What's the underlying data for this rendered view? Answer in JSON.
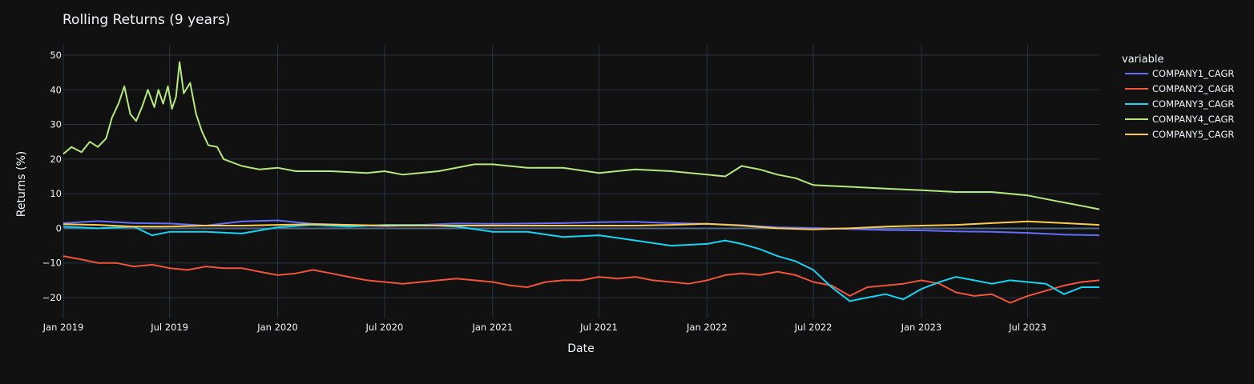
{
  "chart_data": {
    "type": "line",
    "title": "Rolling Returns (9 years)",
    "xlabel": "Date",
    "ylabel": "Returns (%)",
    "x_range": [
      "2019-01-01",
      "2023-10-31"
    ],
    "ylim": [
      -26,
      53
    ],
    "y_ticks": [
      -20,
      -10,
      0,
      10,
      20,
      30,
      40,
      50
    ],
    "y_tick_labels": [
      "−20",
      "−10",
      "0",
      "10",
      "20",
      "30",
      "40",
      "50"
    ],
    "x_ticks": [
      "2019-01-01",
      "2019-07-01",
      "2020-01-01",
      "2020-07-01",
      "2021-01-01",
      "2021-07-01",
      "2022-01-01",
      "2022-07-01",
      "2023-01-01",
      "2023-07-01"
    ],
    "x_tick_labels": [
      "Jan 2019",
      "Jul 2019",
      "Jan 2020",
      "Jul 2020",
      "Jan 2021",
      "Jul 2021",
      "Jan 2022",
      "Jul 2022",
      "Jan 2023",
      "Jul 2023"
    ],
    "legend_title": "variable",
    "legend_position": "right",
    "grid": true,
    "series": [
      {
        "name": "COMPANY1_CAGR",
        "color": "#636efa",
        "points": [
          [
            "2019-01-01",
            1.5
          ],
          [
            "2019-03-01",
            2.1
          ],
          [
            "2019-05-01",
            1.5
          ],
          [
            "2019-07-01",
            1.4
          ],
          [
            "2019-09-01",
            0.8
          ],
          [
            "2019-11-01",
            2.0
          ],
          [
            "2020-01-01",
            2.3
          ],
          [
            "2020-03-01",
            1.3
          ],
          [
            "2020-05-01",
            1.0
          ],
          [
            "2020-07-01",
            0.6
          ],
          [
            "2020-09-01",
            1.0
          ],
          [
            "2020-11-01",
            1.4
          ],
          [
            "2021-01-01",
            1.3
          ],
          [
            "2021-03-01",
            1.4
          ],
          [
            "2021-05-01",
            1.5
          ],
          [
            "2021-07-01",
            1.8
          ],
          [
            "2021-09-01",
            1.9
          ],
          [
            "2021-11-01",
            1.5
          ],
          [
            "2022-01-01",
            1.3
          ],
          [
            "2022-03-01",
            0.9
          ],
          [
            "2022-05-01",
            0.3
          ],
          [
            "2022-07-01",
            0.1
          ],
          [
            "2022-09-01",
            -0.2
          ],
          [
            "2022-11-01",
            -0.5
          ],
          [
            "2023-01-01",
            -0.6
          ],
          [
            "2023-03-01",
            -0.9
          ],
          [
            "2023-05-01",
            -1.0
          ],
          [
            "2023-07-01",
            -1.3
          ],
          [
            "2023-09-01",
            -1.8
          ],
          [
            "2023-10-31",
            -2.0
          ]
        ]
      },
      {
        "name": "COMPANY2_CAGR",
        "color": "#ef553b",
        "points": [
          [
            "2019-01-01",
            -8.0
          ],
          [
            "2019-02-01",
            -9.0
          ],
          [
            "2019-03-01",
            -10.0
          ],
          [
            "2019-04-01",
            -10.0
          ],
          [
            "2019-05-01",
            -11.0
          ],
          [
            "2019-06-01",
            -10.5
          ],
          [
            "2019-07-01",
            -11.5
          ],
          [
            "2019-08-01",
            -12.0
          ],
          [
            "2019-09-01",
            -11.0
          ],
          [
            "2019-10-01",
            -11.5
          ],
          [
            "2019-11-01",
            -11.5
          ],
          [
            "2019-12-01",
            -12.5
          ],
          [
            "2020-01-01",
            -13.5
          ],
          [
            "2020-02-01",
            -13.0
          ],
          [
            "2020-03-01",
            -12.0
          ],
          [
            "2020-04-01",
            -13.0
          ],
          [
            "2020-05-01",
            -14.0
          ],
          [
            "2020-06-01",
            -15.0
          ],
          [
            "2020-07-01",
            -15.5
          ],
          [
            "2020-08-01",
            -16.0
          ],
          [
            "2020-09-01",
            -15.5
          ],
          [
            "2020-10-01",
            -15.0
          ],
          [
            "2020-11-01",
            -14.5
          ],
          [
            "2020-12-01",
            -15.0
          ],
          [
            "2021-01-01",
            -15.5
          ],
          [
            "2021-02-01",
            -16.5
          ],
          [
            "2021-03-01",
            -17.0
          ],
          [
            "2021-04-01",
            -15.5
          ],
          [
            "2021-05-01",
            -15.0
          ],
          [
            "2021-06-01",
            -15.0
          ],
          [
            "2021-07-01",
            -14.0
          ],
          [
            "2021-08-01",
            -14.5
          ],
          [
            "2021-09-01",
            -14.0
          ],
          [
            "2021-10-01",
            -15.0
          ],
          [
            "2021-11-01",
            -15.5
          ],
          [
            "2021-12-01",
            -16.0
          ],
          [
            "2022-01-01",
            -15.0
          ],
          [
            "2022-02-01",
            -13.5
          ],
          [
            "2022-03-01",
            -13.0
          ],
          [
            "2022-04-01",
            -13.5
          ],
          [
            "2022-05-01",
            -12.5
          ],
          [
            "2022-06-01",
            -13.5
          ],
          [
            "2022-07-01",
            -15.5
          ],
          [
            "2022-08-01",
            -16.5
          ],
          [
            "2022-09-01",
            -19.5
          ],
          [
            "2022-10-01",
            -17.0
          ],
          [
            "2022-11-01",
            -16.5
          ],
          [
            "2022-12-01",
            -16.0
          ],
          [
            "2023-01-01",
            -15.0
          ],
          [
            "2023-02-01",
            -16.0
          ],
          [
            "2023-03-01",
            -18.5
          ],
          [
            "2023-04-01",
            -19.5
          ],
          [
            "2023-05-01",
            -19.0
          ],
          [
            "2023-06-01",
            -21.5
          ],
          [
            "2023-07-01",
            -19.5
          ],
          [
            "2023-08-01",
            -18.0
          ],
          [
            "2023-09-01",
            -16.5
          ],
          [
            "2023-10-01",
            -15.5
          ],
          [
            "2023-10-31",
            -15.0
          ]
        ]
      },
      {
        "name": "COMPANY3_CAGR",
        "color": "#00cc96",
        "stroke": "#19d3f3",
        "points": [
          [
            "2019-01-01",
            0.5
          ],
          [
            "2019-03-01",
            0.0
          ],
          [
            "2019-05-01",
            0.5
          ],
          [
            "2019-06-01",
            -2.0
          ],
          [
            "2019-07-01",
            -1.0
          ],
          [
            "2019-09-01",
            -1.0
          ],
          [
            "2019-11-01",
            -1.5
          ],
          [
            "2020-01-01",
            0.3
          ],
          [
            "2020-03-01",
            1.0
          ],
          [
            "2020-05-01",
            0.5
          ],
          [
            "2020-07-01",
            1.0
          ],
          [
            "2020-09-01",
            1.0
          ],
          [
            "2020-11-01",
            0.5
          ],
          [
            "2021-01-01",
            -1.0
          ],
          [
            "2021-03-01",
            -1.0
          ],
          [
            "2021-05-01",
            -2.5
          ],
          [
            "2021-07-01",
            -2.0
          ],
          [
            "2021-09-01",
            -3.5
          ],
          [
            "2021-11-01",
            -5.0
          ],
          [
            "2022-01-01",
            -4.5
          ],
          [
            "2022-02-01",
            -3.5
          ],
          [
            "2022-03-01",
            -4.5
          ],
          [
            "2022-04-01",
            -6.0
          ],
          [
            "2022-05-01",
            -8.0
          ],
          [
            "2022-06-01",
            -9.5
          ],
          [
            "2022-07-01",
            -12.0
          ],
          [
            "2022-08-01",
            -17.0
          ],
          [
            "2022-09-01",
            -21.0
          ],
          [
            "2022-10-01",
            -20.0
          ],
          [
            "2022-11-01",
            -19.0
          ],
          [
            "2022-12-01",
            -20.5
          ],
          [
            "2023-01-01",
            -17.5
          ],
          [
            "2023-02-01",
            -15.5
          ],
          [
            "2023-03-01",
            -14.0
          ],
          [
            "2023-04-01",
            -15.0
          ],
          [
            "2023-05-01",
            -16.0
          ],
          [
            "2023-06-01",
            -15.0
          ],
          [
            "2023-07-01",
            -15.5
          ],
          [
            "2023-08-01",
            -16.0
          ],
          [
            "2023-09-01",
            -19.0
          ],
          [
            "2023-10-01",
            -17.0
          ],
          [
            "2023-10-31",
            -17.0
          ]
        ]
      },
      {
        "name": "COMPANY4_CAGR",
        "color": "#b6e880",
        "points": [
          [
            "2019-01-01",
            21.5
          ],
          [
            "2019-01-15",
            23.5
          ],
          [
            "2019-02-01",
            22.0
          ],
          [
            "2019-02-15",
            25.0
          ],
          [
            "2019-03-01",
            23.5
          ],
          [
            "2019-03-15",
            26.0
          ],
          [
            "2019-03-25",
            32.0
          ],
          [
            "2019-04-05",
            36.0
          ],
          [
            "2019-04-15",
            41.0
          ],
          [
            "2019-04-25",
            33.0
          ],
          [
            "2019-05-05",
            31.0
          ],
          [
            "2019-05-15",
            35.0
          ],
          [
            "2019-05-25",
            40.0
          ],
          [
            "2019-06-05",
            35.0
          ],
          [
            "2019-06-12",
            40.0
          ],
          [
            "2019-06-20",
            36.0
          ],
          [
            "2019-06-28",
            41.0
          ],
          [
            "2019-07-05",
            34.5
          ],
          [
            "2019-07-12",
            38.0
          ],
          [
            "2019-07-18",
            48.0
          ],
          [
            "2019-07-25",
            39.0
          ],
          [
            "2019-08-05",
            42.0
          ],
          [
            "2019-08-15",
            33.0
          ],
          [
            "2019-08-25",
            28.0
          ],
          [
            "2019-09-05",
            24.0
          ],
          [
            "2019-09-20",
            23.5
          ],
          [
            "2019-10-01",
            20.0
          ],
          [
            "2019-11-01",
            18.0
          ],
          [
            "2019-12-01",
            17.0
          ],
          [
            "2020-01-01",
            17.5
          ],
          [
            "2020-02-01",
            16.5
          ],
          [
            "2020-04-01",
            16.5
          ],
          [
            "2020-06-01",
            16.0
          ],
          [
            "2020-07-01",
            16.5
          ],
          [
            "2020-08-01",
            15.5
          ],
          [
            "2020-10-01",
            16.5
          ],
          [
            "2020-12-01",
            18.5
          ],
          [
            "2021-01-01",
            18.5
          ],
          [
            "2021-03-01",
            17.5
          ],
          [
            "2021-05-01",
            17.5
          ],
          [
            "2021-07-01",
            16.0
          ],
          [
            "2021-09-01",
            17.0
          ],
          [
            "2021-11-01",
            16.5
          ],
          [
            "2022-01-01",
            15.5
          ],
          [
            "2022-02-01",
            15.0
          ],
          [
            "2022-03-01",
            18.0
          ],
          [
            "2022-04-01",
            17.0
          ],
          [
            "2022-05-01",
            15.5
          ],
          [
            "2022-06-01",
            14.5
          ],
          [
            "2022-07-01",
            12.5
          ],
          [
            "2022-09-01",
            12.0
          ],
          [
            "2022-11-01",
            11.5
          ],
          [
            "2023-01-01",
            11.0
          ],
          [
            "2023-03-01",
            10.5
          ],
          [
            "2023-05-01",
            10.5
          ],
          [
            "2023-07-01",
            9.5
          ],
          [
            "2023-08-15",
            8.0
          ],
          [
            "2023-10-01",
            6.5
          ],
          [
            "2023-10-31",
            5.5
          ]
        ]
      },
      {
        "name": "COMPANY5_CAGR",
        "color": "#fecb52",
        "points": [
          [
            "2019-01-01",
            1.2
          ],
          [
            "2019-03-01",
            1.0
          ],
          [
            "2019-05-01",
            0.5
          ],
          [
            "2019-07-01",
            0.5
          ],
          [
            "2019-09-01",
            0.8
          ],
          [
            "2019-11-01",
            0.8
          ],
          [
            "2020-01-01",
            1.0
          ],
          [
            "2020-03-01",
            1.2
          ],
          [
            "2020-05-01",
            1.0
          ],
          [
            "2020-07-01",
            0.8
          ],
          [
            "2020-09-01",
            0.8
          ],
          [
            "2020-11-01",
            0.8
          ],
          [
            "2021-01-01",
            0.8
          ],
          [
            "2021-03-01",
            0.8
          ],
          [
            "2021-05-01",
            0.8
          ],
          [
            "2021-07-01",
            0.8
          ],
          [
            "2021-09-01",
            0.8
          ],
          [
            "2021-11-01",
            1.0
          ],
          [
            "2022-01-01",
            1.3
          ],
          [
            "2022-03-01",
            0.8
          ],
          [
            "2022-05-01",
            0.0
          ],
          [
            "2022-07-01",
            -0.3
          ],
          [
            "2022-09-01",
            0.0
          ],
          [
            "2022-11-01",
            0.5
          ],
          [
            "2023-01-01",
            0.8
          ],
          [
            "2023-03-01",
            1.0
          ],
          [
            "2023-05-01",
            1.5
          ],
          [
            "2023-07-01",
            2.0
          ],
          [
            "2023-09-01",
            1.5
          ],
          [
            "2023-10-31",
            1.0
          ]
        ]
      }
    ]
  }
}
